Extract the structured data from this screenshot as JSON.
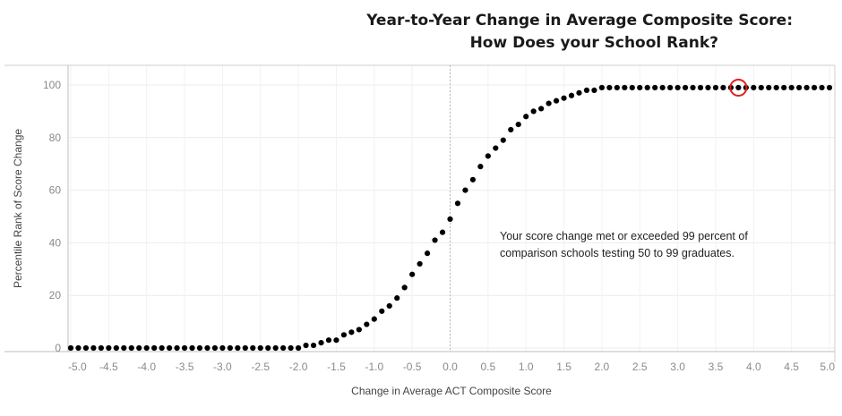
{
  "chart_data": {
    "type": "scatter",
    "title_lines": [
      "Year-to-Year Change in Average Composite Score:",
      "How Does your School Rank?"
    ],
    "xlabel": "Change in Average ACT Composite Score",
    "ylabel": "Percentile Rank of Score Change",
    "xlim": [
      -5.0,
      5.0
    ],
    "ylim": [
      -1,
      107
    ],
    "x_ticks": [
      "-5.0",
      "-4.5",
      "-4.0",
      "-3.5",
      "-3.0",
      "-2.5",
      "-2.0",
      "-1.5",
      "-1.0",
      "-0.5",
      "0.0",
      "0.5",
      "1.0",
      "1.5",
      "2.0",
      "2.5",
      "3.0",
      "3.5",
      "4.0",
      "4.5",
      "5.0"
    ],
    "y_ticks": [
      "0",
      "20",
      "40",
      "60",
      "80",
      "100"
    ],
    "grid": true,
    "reference_line_x": 0.0,
    "points": [
      [
        -5.0,
        0
      ],
      [
        -4.9,
        0
      ],
      [
        -4.8,
        0
      ],
      [
        -4.7,
        0
      ],
      [
        -4.6,
        0
      ],
      [
        -4.5,
        0
      ],
      [
        -4.4,
        0
      ],
      [
        -4.3,
        0
      ],
      [
        -4.2,
        0
      ],
      [
        -4.1,
        0
      ],
      [
        -4.0,
        0
      ],
      [
        -3.9,
        0
      ],
      [
        -3.8,
        0
      ],
      [
        -3.7,
        0
      ],
      [
        -3.6,
        0
      ],
      [
        -3.5,
        0
      ],
      [
        -3.4,
        0
      ],
      [
        -3.3,
        0
      ],
      [
        -3.2,
        0
      ],
      [
        -3.1,
        0
      ],
      [
        -3.0,
        0
      ],
      [
        -2.9,
        0
      ],
      [
        -2.8,
        0
      ],
      [
        -2.7,
        0
      ],
      [
        -2.6,
        0
      ],
      [
        -2.5,
        0
      ],
      [
        -2.4,
        0
      ],
      [
        -2.3,
        0
      ],
      [
        -2.2,
        0
      ],
      [
        -2.1,
        0
      ],
      [
        -2.0,
        0
      ],
      [
        -1.9,
        1
      ],
      [
        -1.8,
        1
      ],
      [
        -1.7,
        2
      ],
      [
        -1.6,
        3
      ],
      [
        -1.5,
        3
      ],
      [
        -1.4,
        5
      ],
      [
        -1.3,
        6
      ],
      [
        -1.2,
        7
      ],
      [
        -1.1,
        9
      ],
      [
        -1.0,
        11
      ],
      [
        -0.9,
        14
      ],
      [
        -0.8,
        16
      ],
      [
        -0.7,
        19
      ],
      [
        -0.6,
        23
      ],
      [
        -0.5,
        28
      ],
      [
        -0.4,
        32
      ],
      [
        -0.3,
        36
      ],
      [
        -0.2,
        41
      ],
      [
        -0.1,
        44
      ],
      [
        0.0,
        49
      ],
      [
        0.1,
        55
      ],
      [
        0.2,
        60
      ],
      [
        0.3,
        64
      ],
      [
        0.4,
        69
      ],
      [
        0.5,
        73
      ],
      [
        0.6,
        76
      ],
      [
        0.7,
        79
      ],
      [
        0.8,
        83
      ],
      [
        0.9,
        85
      ],
      [
        1.0,
        88
      ],
      [
        1.1,
        90
      ],
      [
        1.2,
        91
      ],
      [
        1.3,
        93
      ],
      [
        1.4,
        94
      ],
      [
        1.5,
        95
      ],
      [
        1.6,
        96
      ],
      [
        1.7,
        97
      ],
      [
        1.8,
        98
      ],
      [
        1.9,
        98
      ],
      [
        2.0,
        99
      ],
      [
        2.1,
        99
      ],
      [
        2.2,
        99
      ],
      [
        2.3,
        99
      ],
      [
        2.4,
        99
      ],
      [
        2.5,
        99
      ],
      [
        2.6,
        99
      ],
      [
        2.7,
        99
      ],
      [
        2.8,
        99
      ],
      [
        2.9,
        99
      ],
      [
        3.0,
        99
      ],
      [
        3.1,
        99
      ],
      [
        3.2,
        99
      ],
      [
        3.3,
        99
      ],
      [
        3.4,
        99
      ],
      [
        3.5,
        99
      ],
      [
        3.6,
        99
      ],
      [
        3.7,
        99
      ],
      [
        3.8,
        99
      ],
      [
        3.9,
        99
      ],
      [
        4.0,
        99
      ],
      [
        4.1,
        99
      ],
      [
        4.2,
        99
      ],
      [
        4.3,
        99
      ],
      [
        4.4,
        99
      ],
      [
        4.5,
        99
      ],
      [
        4.6,
        99
      ],
      [
        4.7,
        99
      ],
      [
        4.8,
        99
      ],
      [
        4.9,
        99
      ],
      [
        5.0,
        99
      ]
    ],
    "highlight": {
      "x": 3.8,
      "y": 99,
      "color": "#e02020"
    },
    "point_color": "#000000",
    "annotation_lines": [
      "Your score change met or exceeded 99 percent of",
      "comparison schools testing 50 to 99 graduates."
    ]
  }
}
